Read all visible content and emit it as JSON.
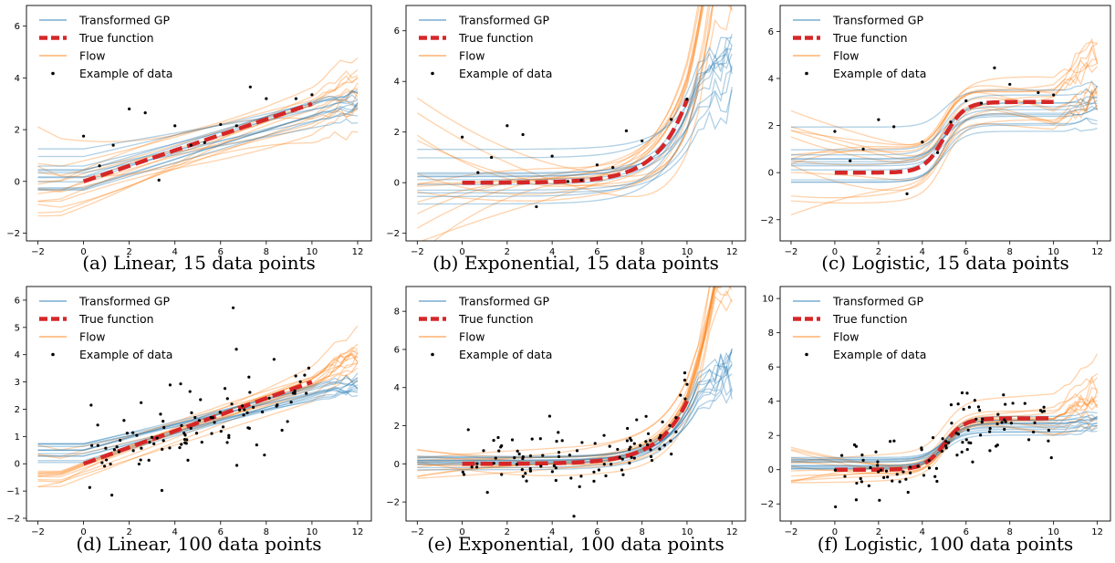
{
  "colors": {
    "gp": "#1f77b4",
    "flow": "#ff7f0e",
    "true": "#d62728",
    "data": "#000000"
  },
  "legend": [
    "Transformed GP",
    "True function",
    "Flow",
    "Example of data"
  ],
  "chart_data": [
    {
      "type": "line",
      "caption": "(a) Linear, 15 data points",
      "function": "linear",
      "n_points": 15,
      "xlim": [
        -2.5,
        12.6
      ],
      "ylim": [
        -2.3,
        6.8
      ],
      "xticks": [
        -2,
        0,
        2,
        4,
        6,
        8,
        10,
        12
      ],
      "yticks": [
        -2,
        0,
        2,
        4,
        6
      ],
      "flow_spread": 0.8,
      "gp_spread": 0.6,
      "data": {
        "x": [
          0.0,
          0.7,
          1.3,
          2.0,
          2.7,
          3.3,
          4.0,
          4.7,
          5.3,
          6.0,
          6.7,
          7.3,
          8.0,
          9.3,
          10.0
        ],
        "y": [
          1.75,
          0.6,
          1.4,
          2.8,
          2.65,
          0.05,
          2.15,
          1.4,
          1.5,
          2.2,
          2.15,
          3.65,
          3.2,
          3.2,
          3.35
        ]
      }
    },
    {
      "type": "line",
      "caption": "(b) Exponential, 15 data points",
      "function": "exponential",
      "n_points": 15,
      "xlim": [
        -2.5,
        12.6
      ],
      "ylim": [
        -2.3,
        7.0
      ],
      "xticks": [
        -2,
        0,
        2,
        4,
        6,
        8,
        10,
        12
      ],
      "yticks": [
        -2,
        0,
        2,
        4,
        6
      ],
      "flow_spread": 1.3,
      "gp_spread": 0.7,
      "data": {
        "x": [
          0.0,
          0.7,
          1.3,
          2.0,
          2.7,
          3.3,
          4.0,
          4.7,
          5.3,
          6.0,
          6.7,
          7.3,
          8.0,
          9.3,
          10.0
        ],
        "y": [
          1.8,
          0.4,
          1.0,
          2.25,
          1.9,
          -0.95,
          1.05,
          0.05,
          0.1,
          0.7,
          0.6,
          2.05,
          1.65,
          2.5,
          3.3
        ]
      }
    },
    {
      "type": "line",
      "caption": "(c) Logistic, 15 data points",
      "function": "logistic",
      "n_points": 15,
      "xlim": [
        -2.5,
        12.6
      ],
      "ylim": [
        -2.9,
        7.1
      ],
      "xticks": [
        -2,
        0,
        2,
        4,
        6,
        8,
        10,
        12
      ],
      "yticks": [
        -2,
        0,
        2,
        4,
        6
      ],
      "flow_spread": 1.4,
      "gp_spread": 0.9,
      "data": {
        "x": [
          0.0,
          0.7,
          1.3,
          2.0,
          2.7,
          3.3,
          4.0,
          4.7,
          5.3,
          6.0,
          6.7,
          7.3,
          8.0,
          9.3,
          10.0
        ],
        "y": [
          1.75,
          0.5,
          1.0,
          2.25,
          1.95,
          -0.9,
          1.3,
          0.85,
          2.15,
          3.05,
          2.95,
          4.45,
          3.75,
          3.4,
          3.3
        ]
      }
    },
    {
      "type": "line",
      "caption": "(d) Linear, 100 data points",
      "function": "linear",
      "n_points": 100,
      "xlim": [
        -2.5,
        12.6
      ],
      "ylim": [
        -2.1,
        6.5
      ],
      "xticks": [
        -2,
        0,
        2,
        4,
        6,
        8,
        10,
        12
      ],
      "yticks": [
        -2,
        -1,
        0,
        1,
        2,
        3,
        4,
        5,
        6
      ],
      "flow_spread": 0.4,
      "gp_spread": 0.3
    },
    {
      "type": "line",
      "caption": "(e) Exponential, 100 data points",
      "function": "exponential",
      "n_points": 100,
      "xlim": [
        -2.5,
        12.6
      ],
      "ylim": [
        -3.0,
        9.3
      ],
      "xticks": [
        -2,
        0,
        2,
        4,
        6,
        8,
        10,
        12
      ],
      "yticks": [
        -2,
        0,
        2,
        4,
        6,
        8
      ],
      "flow_spread": 0.5,
      "gp_spread": 0.4
    },
    {
      "type": "line",
      "caption": "(f) Logistic, 100 data points",
      "function": "logistic",
      "n_points": 100,
      "xlim": [
        -2.5,
        12.6
      ],
      "ylim": [
        -3.0,
        10.7
      ],
      "xticks": [
        -2,
        0,
        2,
        4,
        6,
        8,
        10,
        12
      ],
      "yticks": [
        -2,
        0,
        2,
        4,
        6,
        8,
        10
      ],
      "flow_spread": 0.6,
      "gp_spread": 0.3
    }
  ]
}
